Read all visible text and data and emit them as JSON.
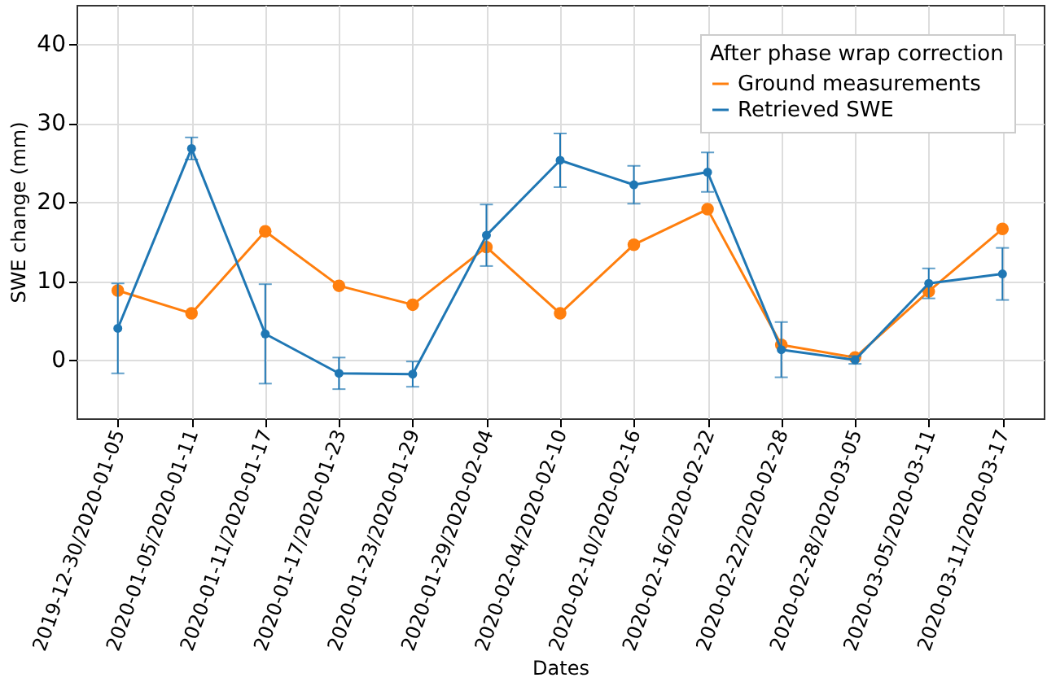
{
  "chart_data": {
    "type": "line",
    "xlabel": "Dates",
    "ylabel": "SWE change (mm)",
    "legend_title": "After phase wrap correction",
    "categories": [
      "2019-12-30/2020-01-05",
      "2020-01-05/2020-01-11",
      "2020-01-11/2020-01-17",
      "2020-01-17/2020-01-23",
      "2020-01-23/2020-01-29",
      "2020-01-29/2020-02-04",
      "2020-02-04/2020-02-10",
      "2020-02-10/2020-02-16",
      "2020-02-16/2020-02-22",
      "2020-02-22/2020-02-28",
      "2020-02-28/2020-03-05",
      "2020-03-05/2020-03-11",
      "2020-03-11/2020-03-17"
    ],
    "series": [
      {
        "name": "Ground measurements",
        "color": "#ff7f0e",
        "values": [
          8.8,
          5.9,
          16.3,
          9.4,
          7.0,
          14.3,
          5.9,
          14.6,
          19.1,
          1.9,
          0.3,
          8.7,
          16.6
        ]
      },
      {
        "name": "Retrieved SWE",
        "color": "#1f77b4",
        "values": [
          4.0,
          26.8,
          3.3,
          -1.7,
          -1.8,
          15.8,
          25.3,
          22.2,
          23.8,
          1.3,
          0.0,
          9.7,
          10.9
        ],
        "errors": [
          5.7,
          1.4,
          6.3,
          2.0,
          1.6,
          3.9,
          3.4,
          2.4,
          2.5,
          3.5,
          0.5,
          1.9,
          3.3
        ]
      }
    ],
    "ylim": [
      -7.4,
      45
    ],
    "yticks": [
      0,
      10,
      20,
      30,
      40
    ],
    "grid": true,
    "legend": "top right",
    "marker": "circle",
    "line_style": "solid"
  }
}
